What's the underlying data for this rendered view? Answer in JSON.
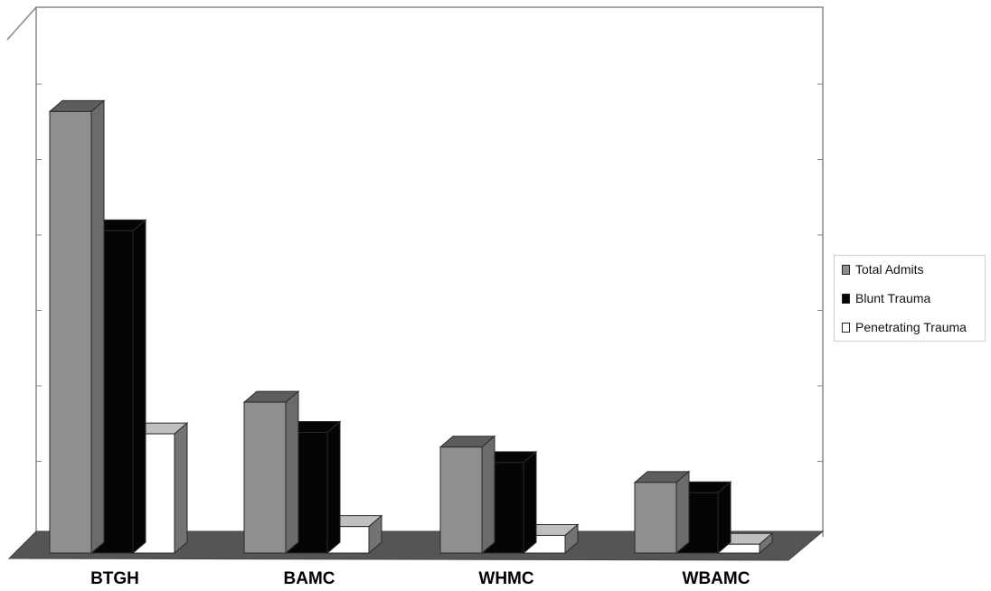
{
  "chart_data": {
    "type": "bar",
    "style": "3d-clustered",
    "title": "",
    "xlabel": "",
    "ylabel": "",
    "categories": [
      "BTGH",
      "BAMC",
      "WHMC",
      "WBAMC"
    ],
    "series": [
      {
        "name": "Total Admits",
        "color": "#8f8f8f",
        "values": [
          6000,
          2050,
          1440,
          960
        ]
      },
      {
        "name": "Blunt Trauma",
        "color": "#050505",
        "values": [
          4380,
          1640,
          1230,
          820
        ]
      },
      {
        "name": "Penetrating Trauma",
        "color": "#ffffff",
        "values": [
          1620,
          360,
          240,
          120
        ]
      }
    ],
    "ylim": [
      0,
      7000
    ],
    "grid": false,
    "legend_position": "right"
  },
  "colors": {
    "floor": "#555555",
    "wall_line": "#888888",
    "bar_outline": "#2a2a2a"
  }
}
